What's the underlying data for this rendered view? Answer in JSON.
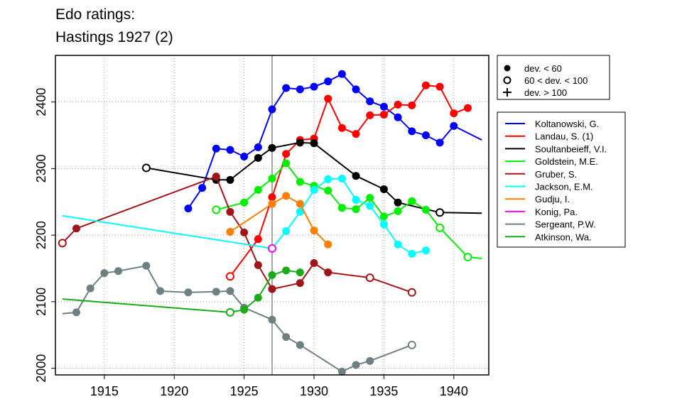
{
  "chart_data": {
    "type": "line",
    "title_lines": [
      "Edo ratings:",
      "Hastings 1927 (2)"
    ],
    "xlim": [
      1911.5,
      1942.5
    ],
    "ylim": [
      1990,
      2470
    ],
    "x_ticks": [
      1915,
      1920,
      1925,
      1930,
      1935,
      1940
    ],
    "y_ticks": [
      2000,
      2100,
      2200,
      2300,
      2400
    ],
    "grid": "dotted",
    "reference_line_x": 1927,
    "marker_legend": [
      {
        "symbol": "filled-circle",
        "label": "dev. < 60"
      },
      {
        "symbol": "open-circle",
        "label": "60 < dev. < 100"
      },
      {
        "symbol": "plus",
        "label": "dev. > 100"
      }
    ],
    "series": [
      {
        "name": "Koltanowski, G.",
        "color": "#0000ff",
        "points": [
          [
            1921,
            2240,
            "f"
          ],
          [
            1922,
            2271,
            "f"
          ],
          [
            1923,
            2330,
            "f"
          ],
          [
            1924,
            2328,
            "f"
          ],
          [
            1925,
            2318,
            "f"
          ],
          [
            1926,
            2332,
            "f"
          ],
          [
            1927,
            2389,
            "f"
          ],
          [
            1928,
            2421,
            "f"
          ],
          [
            1929,
            2419,
            "f"
          ],
          [
            1930,
            2423,
            "f"
          ],
          [
            1931,
            2431,
            "f"
          ],
          [
            1932,
            2442,
            "f"
          ],
          [
            1933,
            2419,
            "f"
          ],
          [
            1934,
            2401,
            "f"
          ],
          [
            1935,
            2393,
            "f"
          ],
          [
            1936,
            2377,
            "f"
          ],
          [
            1937,
            2356,
            "f"
          ],
          [
            1938,
            2350,
            "f"
          ],
          [
            1939,
            2339,
            "f"
          ],
          [
            1940,
            2364,
            "f"
          ],
          [
            1942,
            2343,
            ""
          ]
        ]
      },
      {
        "name": "Landau, S. (1)",
        "color": "#ff0000",
        "points": [
          [
            1924,
            2138,
            "o"
          ],
          [
            1926,
            2194,
            "f"
          ],
          [
            1927,
            2257,
            "f"
          ],
          [
            1928,
            2322,
            "f"
          ],
          [
            1929,
            2343,
            "f"
          ],
          [
            1930,
            2345,
            "f"
          ],
          [
            1931,
            2405,
            "f"
          ],
          [
            1932,
            2361,
            "f"
          ],
          [
            1933,
            2352,
            "f"
          ],
          [
            1934,
            2380,
            "f"
          ],
          [
            1935,
            2381,
            "f"
          ],
          [
            1936,
            2396,
            "f"
          ],
          [
            1937,
            2395,
            "f"
          ],
          [
            1938,
            2425,
            "f"
          ],
          [
            1939,
            2423,
            "f"
          ],
          [
            1940,
            2383,
            "f"
          ],
          [
            1941,
            2391,
            "f"
          ]
        ]
      },
      {
        "name": "Soultanbeieff, V.I.",
        "color": "#000000",
        "points": [
          [
            1918,
            2301,
            "o"
          ],
          [
            1923,
            2283,
            "f"
          ],
          [
            1924,
            2283,
            "f"
          ],
          [
            1926,
            2316,
            "f"
          ],
          [
            1927,
            2331,
            "f"
          ],
          [
            1929,
            2339,
            "f"
          ],
          [
            1930,
            2338,
            "f"
          ],
          [
            1933,
            2289,
            "f"
          ],
          [
            1935,
            2269,
            "f"
          ],
          [
            1936,
            2249,
            "f"
          ],
          [
            1939,
            2234,
            "o"
          ],
          [
            1942,
            2233,
            ""
          ]
        ]
      },
      {
        "name": "Goldstein, M.E.",
        "color": "#00ee00",
        "points": [
          [
            1923,
            2238,
            "o"
          ],
          [
            1925,
            2249,
            "f"
          ],
          [
            1926,
            2268,
            "f"
          ],
          [
            1927,
            2285,
            "f"
          ],
          [
            1928,
            2308,
            "f"
          ],
          [
            1929,
            2280,
            "f"
          ],
          [
            1930,
            2274,
            "f"
          ],
          [
            1931,
            2267,
            "f"
          ],
          [
            1932,
            2241,
            "f"
          ],
          [
            1933,
            2239,
            "f"
          ],
          [
            1934,
            2256,
            "f"
          ],
          [
            1935,
            2228,
            "f"
          ],
          [
            1936,
            2236,
            "f"
          ],
          [
            1937,
            2251,
            "f"
          ],
          [
            1938,
            2238,
            "f"
          ],
          [
            1939,
            2211,
            "o"
          ],
          [
            1941,
            2167,
            "o"
          ],
          [
            1942,
            2165,
            ""
          ]
        ]
      },
      {
        "name": "Gruber, S.",
        "color": "#a0151a",
        "points": [
          [
            1912,
            2188,
            "o"
          ],
          [
            1913,
            2210,
            "f"
          ],
          [
            1923,
            2288,
            "f"
          ],
          [
            1924,
            2235,
            "f"
          ],
          [
            1925,
            2204,
            "f"
          ],
          [
            1926,
            2155,
            "f"
          ],
          [
            1927,
            2119,
            "f"
          ],
          [
            1929,
            2128,
            "f"
          ],
          [
            1930,
            2158,
            "f"
          ],
          [
            1931,
            2144,
            "f"
          ],
          [
            1934,
            2136,
            "o"
          ],
          [
            1937,
            2114,
            "o"
          ]
        ]
      },
      {
        "name": "Jackson, E.M.",
        "color": "#00ffff",
        "points": [
          [
            1912,
            2229,
            ""
          ],
          [
            1927,
            2180,
            "o"
          ],
          [
            1928,
            2206,
            "f"
          ],
          [
            1929,
            2235,
            "f"
          ],
          [
            1930,
            2268,
            "f"
          ],
          [
            1931,
            2284,
            "f"
          ],
          [
            1932,
            2285,
            "f"
          ],
          [
            1933,
            2253,
            "f"
          ],
          [
            1934,
            2244,
            "f"
          ],
          [
            1935,
            2216,
            "f"
          ],
          [
            1936,
            2186,
            "f"
          ],
          [
            1937,
            2172,
            "f"
          ],
          [
            1938,
            2177,
            "f"
          ]
        ]
      },
      {
        "name": "Gudju, I.",
        "color": "#ff7f00",
        "points": [
          [
            1924,
            2205,
            "f"
          ],
          [
            1927,
            2247,
            "f"
          ],
          [
            1928,
            2259,
            "f"
          ],
          [
            1929,
            2247,
            "f"
          ],
          [
            1930,
            2207,
            "f"
          ],
          [
            1931,
            2186,
            "f"
          ]
        ]
      },
      {
        "name": "Konig, Pa.",
        "color": "#ff00ff",
        "points": [
          [
            1927,
            2180,
            "o"
          ]
        ]
      },
      {
        "name": "Sergeant, P.W.",
        "color": "#6e8082",
        "points": [
          [
            1912,
            2082,
            ""
          ],
          [
            1913,
            2084,
            "f"
          ],
          [
            1914,
            2120,
            "f"
          ],
          [
            1915,
            2143,
            "f"
          ],
          [
            1916,
            2146,
            "f"
          ],
          [
            1918,
            2154,
            "f"
          ],
          [
            1919,
            2116,
            "f"
          ],
          [
            1921,
            2114,
            "f"
          ],
          [
            1923,
            2115,
            "f"
          ],
          [
            1924,
            2116,
            "f"
          ],
          [
            1925,
            2091,
            "f"
          ],
          [
            1927,
            2073,
            "f"
          ],
          [
            1928,
            2047,
            "f"
          ],
          [
            1929,
            2035,
            "f"
          ],
          [
            1932,
            1995,
            "f"
          ],
          [
            1933,
            2005,
            "f"
          ],
          [
            1934,
            2011,
            "f"
          ],
          [
            1937,
            2035,
            "o"
          ]
        ]
      },
      {
        "name": "Atkinson, Wa.",
        "color": "#1aaa1a",
        "points": [
          [
            1912,
            2104,
            ""
          ],
          [
            1924,
            2084,
            "o"
          ],
          [
            1925,
            2088,
            "f"
          ],
          [
            1926,
            2106,
            "f"
          ],
          [
            1927,
            2140,
            "f"
          ],
          [
            1928,
            2147,
            "f"
          ],
          [
            1929,
            2144,
            "f"
          ]
        ]
      }
    ]
  }
}
